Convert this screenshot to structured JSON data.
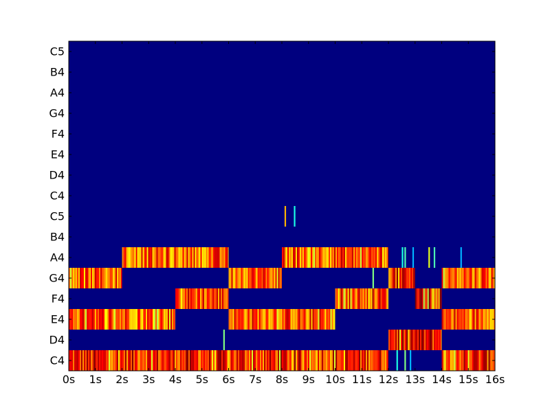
{
  "chart_data": {
    "type": "heatmap",
    "title": "",
    "xlabel": "",
    "ylabel": "",
    "colormap": "jet",
    "colors": {
      "background": "#00007f",
      "frame": "#000000"
    },
    "xlim": [
      0,
      16
    ],
    "x_ticks": [
      "0s",
      "1s",
      "2s",
      "3s",
      "4s",
      "5s",
      "6s",
      "7s",
      "8s",
      "9s",
      "10s",
      "11s",
      "12s",
      "13s",
      "14s",
      "15s",
      "16s"
    ],
    "y_ticks_bottom_to_top": [
      "C4",
      "D4",
      "E4",
      "F4",
      "G4",
      "A4",
      "B4",
      "C5",
      "C4",
      "D4",
      "E4",
      "F4",
      "G4",
      "A4",
      "B4",
      "C5"
    ],
    "segments": [
      {
        "row": 0,
        "start": 0.0,
        "end": 12.0,
        "level": 0.85
      },
      {
        "row": 0,
        "start": 14.0,
        "end": 16.0,
        "level": 0.85
      },
      {
        "row": 1,
        "start": 12.0,
        "end": 14.0,
        "level": 0.88
      },
      {
        "row": 2,
        "start": 0.0,
        "end": 4.0,
        "level": 0.8
      },
      {
        "row": 2,
        "start": 6.0,
        "end": 10.0,
        "level": 0.8
      },
      {
        "row": 2,
        "start": 14.0,
        "end": 16.0,
        "level": 0.8
      },
      {
        "row": 3,
        "start": 4.0,
        "end": 6.0,
        "level": 0.82
      },
      {
        "row": 3,
        "start": 10.0,
        "end": 12.0,
        "level": 0.82
      },
      {
        "row": 3,
        "start": 13.0,
        "end": 14.0,
        "level": 0.93
      },
      {
        "row": 4,
        "start": 0.0,
        "end": 2.0,
        "level": 0.78
      },
      {
        "row": 4,
        "start": 6.0,
        "end": 8.0,
        "level": 0.8
      },
      {
        "row": 4,
        "start": 12.0,
        "end": 13.0,
        "level": 0.85
      },
      {
        "row": 4,
        "start": 14.0,
        "end": 16.0,
        "level": 0.8
      },
      {
        "row": 5,
        "start": 2.0,
        "end": 6.0,
        "level": 0.78
      },
      {
        "row": 5,
        "start": 8.0,
        "end": 12.0,
        "level": 0.8
      }
    ],
    "sparse_marks": [
      {
        "row": 5,
        "x": 12.5,
        "level": 0.4
      },
      {
        "row": 5,
        "x": 12.6,
        "level": 0.45
      },
      {
        "row": 5,
        "x": 12.9,
        "level": 0.3
      },
      {
        "row": 5,
        "x": 13.5,
        "level": 0.6
      },
      {
        "row": 5,
        "x": 13.7,
        "level": 0.45
      },
      {
        "row": 5,
        "x": 14.7,
        "level": 0.3
      },
      {
        "row": 7,
        "x": 8.1,
        "level": 0.7
      },
      {
        "row": 7,
        "x": 8.45,
        "level": 0.4
      },
      {
        "row": 0,
        "x": 12.3,
        "level": 0.4
      },
      {
        "row": 0,
        "x": 12.6,
        "level": 0.5
      },
      {
        "row": 0,
        "x": 12.8,
        "level": 0.3
      },
      {
        "row": 1,
        "x": 5.8,
        "level": 0.5
      },
      {
        "row": 4,
        "x": 11.4,
        "level": 0.5
      }
    ]
  }
}
